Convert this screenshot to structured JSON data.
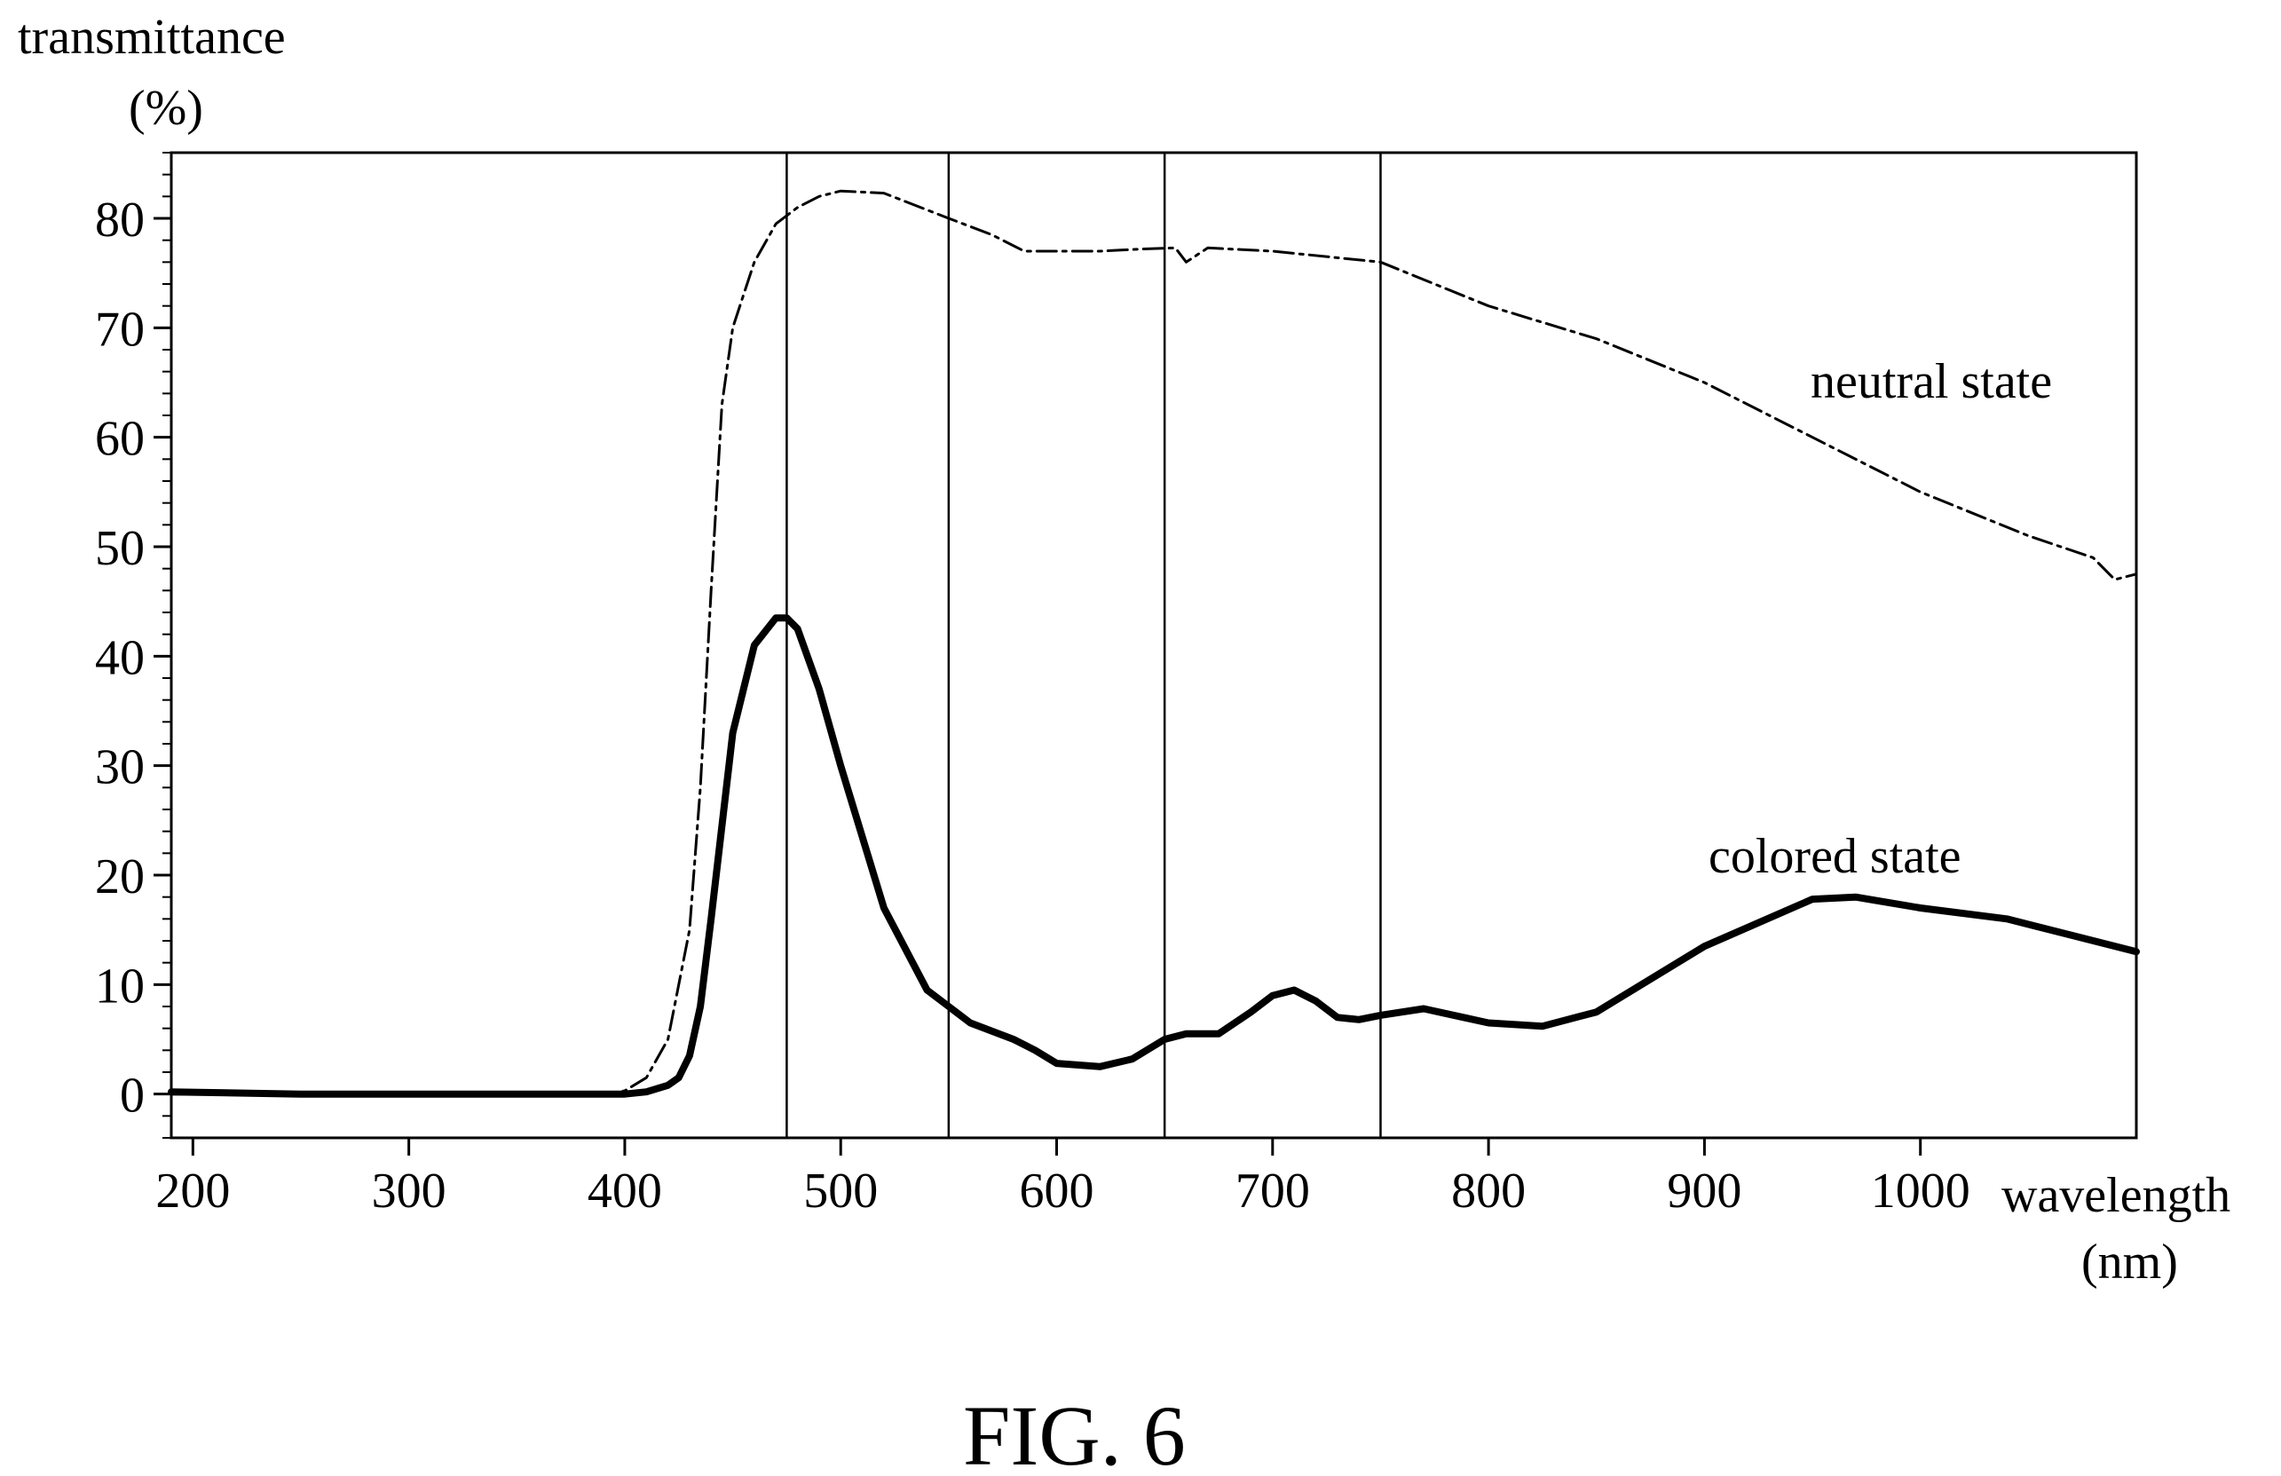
{
  "chart_data": {
    "type": "line",
    "title": "",
    "ylabel": "transmittance",
    "ylabel_unit": "(%)",
    "xlabel": "wavelength",
    "xlabel_unit": "(nm)",
    "xlim": [
      190,
      1100
    ],
    "ylim": [
      -4,
      86
    ],
    "x_ticks": [
      200,
      300,
      400,
      500,
      600,
      700,
      800,
      900,
      1000
    ],
    "y_ticks": [
      0,
      10,
      20,
      30,
      40,
      50,
      60,
      70,
      80
    ],
    "vertical_lines": [
      475,
      550,
      650,
      750
    ],
    "grid": false,
    "series": [
      {
        "name": "neutral state",
        "style": "dash-dot",
        "x": [
          190,
          250,
          300,
          350,
          390,
          400,
          410,
          420,
          430,
          435,
          440,
          445,
          450,
          455,
          460,
          470,
          480,
          490,
          500,
          520,
          550,
          570,
          585,
          600,
          620,
          640,
          655,
          660,
          670,
          700,
          750,
          800,
          850,
          900,
          950,
          1000,
          1050,
          1080,
          1090,
          1100
        ],
        "y": [
          0,
          0,
          0,
          0,
          0,
          0.3,
          1.5,
          5,
          15,
          28,
          46,
          63,
          70,
          73,
          76,
          79.5,
          81,
          82,
          82.5,
          82.3,
          80,
          78.5,
          77,
          77,
          77,
          77.2,
          77.3,
          76,
          77.3,
          77,
          76,
          72,
          69,
          65,
          60,
          55,
          51,
          49,
          47,
          47.5
        ]
      },
      {
        "name": "colored state",
        "style": "solid",
        "x": [
          190,
          250,
          300,
          350,
          400,
          410,
          420,
          425,
          430,
          435,
          440,
          450,
          460,
          470,
          475,
          480,
          490,
          500,
          520,
          540,
          550,
          560,
          580,
          590,
          600,
          620,
          635,
          650,
          660,
          675,
          690,
          700,
          710,
          720,
          730,
          740,
          750,
          770,
          800,
          825,
          850,
          900,
          950,
          970,
          1000,
          1040,
          1070,
          1100
        ],
        "y": [
          0.2,
          0,
          0,
          0,
          0,
          0.2,
          0.8,
          1.5,
          3.5,
          8,
          16,
          33,
          41,
          43.5,
          43.5,
          42.5,
          37,
          30,
          17,
          9.5,
          8,
          6.5,
          5,
          4,
          2.8,
          2.5,
          3.2,
          5,
          5.5,
          5.5,
          7.5,
          9,
          9.5,
          8.5,
          7,
          6.8,
          7.2,
          7.8,
          6.5,
          6.2,
          7.5,
          13.5,
          17.8,
          18,
          17,
          16,
          14.5,
          13
        ]
      }
    ]
  },
  "caption": "FIG. 6"
}
